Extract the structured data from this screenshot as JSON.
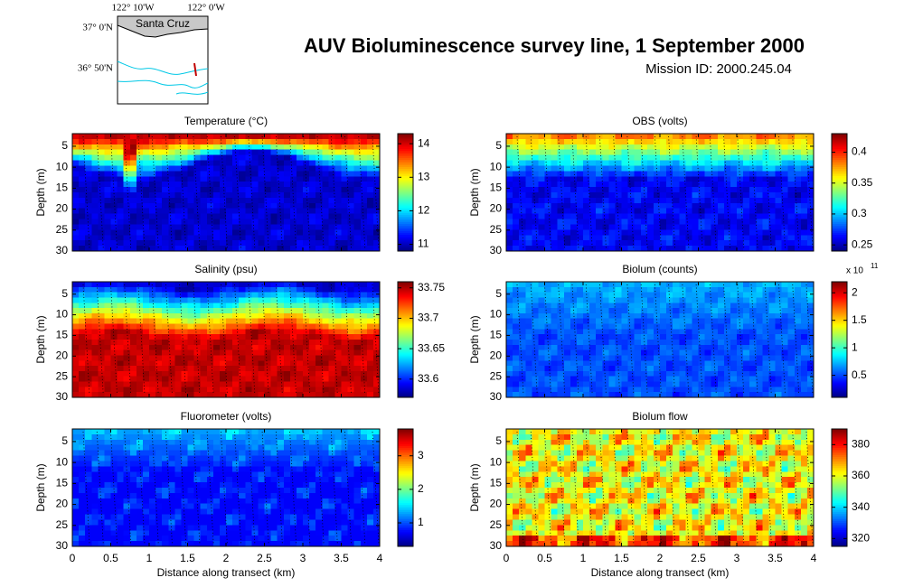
{
  "title": "AUV Bioluminescence survey line, 1 September 2000",
  "subtitle": "Mission ID: 2000.245.04",
  "inset": {
    "lon_labels": [
      "122° 10'W",
      "122° 0'W"
    ],
    "lat_labels": [
      "37° 0'N",
      "36° 50'N"
    ],
    "place": "Santa Cruz"
  },
  "chart_data": [
    {
      "type": "heatmap",
      "title": "Temperature (°C)",
      "ylabel": "Depth (m)",
      "colormap": "jet",
      "xlim": [
        0,
        4
      ],
      "xticks": [
        0,
        0.5,
        1,
        1.5,
        2,
        2.5,
        3,
        3.5,
        4
      ],
      "ylim": [
        30,
        2
      ],
      "yticks": [
        5,
        10,
        15,
        20,
        25,
        30
      ],
      "clim": [
        10.8,
        14.3
      ],
      "cticks": [
        11,
        12,
        13,
        14
      ]
    },
    {
      "type": "heatmap",
      "title": "OBS (volts)",
      "ylabel": "Depth (m)",
      "colormap": "jet",
      "xlim": [
        0,
        4
      ],
      "xticks": [
        0,
        0.5,
        1,
        1.5,
        2,
        2.5,
        3,
        3.5,
        4
      ],
      "ylim": [
        30,
        2
      ],
      "yticks": [
        5,
        10,
        15,
        20,
        25,
        30
      ],
      "clim": [
        0.24,
        0.43
      ],
      "cticks": [
        0.25,
        0.3,
        0.35,
        0.4
      ]
    },
    {
      "type": "heatmap",
      "title": "Salinity (psu)",
      "ylabel": "Depth (m)",
      "colormap": "jet",
      "xlim": [
        0,
        4
      ],
      "xticks": [
        0,
        0.5,
        1,
        1.5,
        2,
        2.5,
        3,
        3.5,
        4
      ],
      "ylim": [
        30,
        2
      ],
      "yticks": [
        5,
        10,
        15,
        20,
        25,
        30
      ],
      "clim": [
        33.57,
        33.76
      ],
      "cticks": [
        33.6,
        33.65,
        33.7,
        33.75
      ]
    },
    {
      "type": "heatmap",
      "title": "Biolum (counts)",
      "ylabel": "Depth (m)",
      "colormap": "jet",
      "xlim": [
        0,
        4
      ],
      "xticks": [
        0,
        0.5,
        1,
        1.5,
        2,
        2.5,
        3,
        3.5,
        4
      ],
      "ylim": [
        30,
        2
      ],
      "yticks": [
        5,
        10,
        15,
        20,
        25,
        30
      ],
      "clim": [
        0.1,
        2.2
      ],
      "cticks": [
        0.5,
        1,
        1.5,
        2
      ],
      "colorbar_label": "x 10",
      "colorbar_exponent": "11"
    },
    {
      "type": "heatmap",
      "title": "Fluorometer (volts)",
      "ylabel": "Depth (m)",
      "xlabel": "Distance along transect (km)",
      "colormap": "jet",
      "xlim": [
        0,
        4
      ],
      "xticks": [
        0,
        0.5,
        1,
        1.5,
        2,
        2.5,
        3,
        3.5,
        4
      ],
      "ylim": [
        30,
        2
      ],
      "yticks": [
        5,
        10,
        15,
        20,
        25,
        30
      ],
      "clim": [
        0.3,
        3.8
      ],
      "cticks": [
        1,
        2,
        3
      ]
    },
    {
      "type": "heatmap",
      "title": "Biolum flow",
      "ylabel": "Depth (m)",
      "xlabel": "Distance along transect (km)",
      "colormap": "jet",
      "xlim": [
        0,
        4
      ],
      "xticks": [
        0,
        0.5,
        1,
        1.5,
        2,
        2.5,
        3,
        3.5,
        4
      ],
      "ylim": [
        30,
        2
      ],
      "yticks": [
        5,
        10,
        15,
        20,
        25,
        30
      ],
      "clim": [
        315,
        390
      ],
      "cticks": [
        320,
        340,
        360,
        380
      ]
    }
  ]
}
